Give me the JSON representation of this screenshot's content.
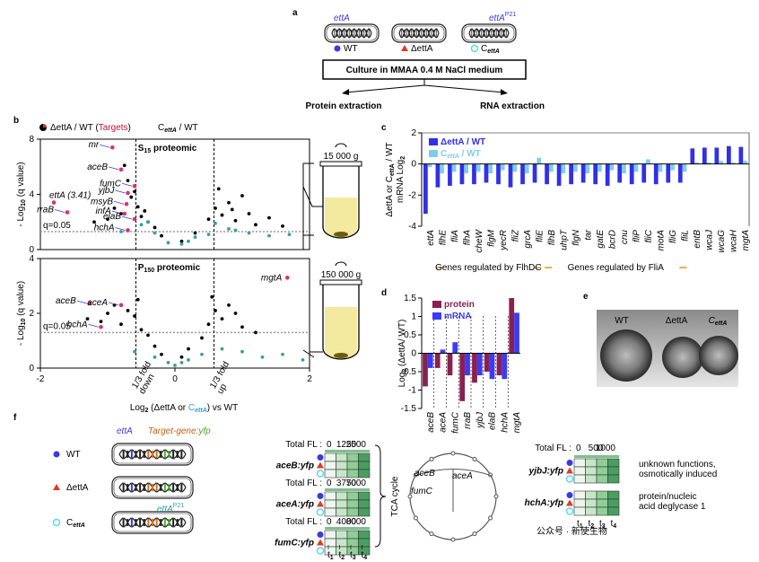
{
  "panel_a": {
    "letter": "a",
    "strains": [
      {
        "gene": "ettA",
        "legend": "WT"
      },
      {
        "legend": "ΔettA"
      },
      {
        "gene": "ettA",
        "gene_sup": "P21",
        "legend": "C",
        "legend_sub": "ettA"
      }
    ],
    "culture": "Culture in MMAA 0.4 M NaCl medium",
    "outputs": [
      "Protein extraction",
      "RNA extraction"
    ]
  },
  "panel_b": {
    "letter": "b",
    "legend1": [
      "ΔettA / WT (",
      "Targets",
      ")"
    ],
    "legend2": [
      "C",
      "ettA",
      " / WT"
    ],
    "tubes": [
      "15 000 g",
      "150 000 g"
    ]
  },
  "chart_data": [
    {
      "type": "scatter",
      "title": [
        "S",
        "15",
        " proteomic"
      ],
      "ylabel": [
        "- Log",
        "10",
        " (q value)"
      ],
      "xlim": [
        -2,
        2
      ],
      "ylim": [
        0,
        8
      ],
      "yticks": [
        0,
        4,
        8
      ],
      "threshold": 1.3,
      "threshold_label": "q=0.05",
      "fold_lines": [
        -0.58,
        0.58
      ],
      "series": [
        {
          "color": "#000000",
          "x": [
            -1.2,
            -0.9,
            -0.8,
            -0.7,
            -0.65,
            -0.6,
            -0.55,
            -0.5,
            -0.45,
            -0.4,
            -0.3,
            -0.2,
            0.1,
            0.3,
            0.5,
            0.6,
            0.7,
            0.8,
            0.9,
            1.0,
            1.1,
            1.2,
            1.4,
            1.6,
            -1.0,
            -0.75,
            0.65,
            0.85
          ],
          "y": [
            2.0,
            3.0,
            2.6,
            5.0,
            3.8,
            4.2,
            3.1,
            2.4,
            2.8,
            2.0,
            1.6,
            1.0,
            0.6,
            1.2,
            2.2,
            3.0,
            2.5,
            3.4,
            2.1,
            3.9,
            2.6,
            1.8,
            2.3,
            1.7,
            2.2,
            6.1,
            4.4,
            2.9
          ]
        },
        {
          "color": "#3a9e9e",
          "x": [
            -0.8,
            -0.5,
            -0.3,
            -0.1,
            0.1,
            0.3,
            0.5,
            0.8,
            1.1,
            1.4,
            1.7,
            -0.4,
            0.2,
            0.6,
            0.9
          ],
          "y": [
            1.3,
            1.8,
            1.2,
            0.5,
            0.4,
            0.9,
            1.1,
            1.5,
            1.2,
            1.0,
            1.1,
            2.0,
            0.6,
            1.9,
            1.4
          ]
        }
      ],
      "annotations": [
        {
          "text": "mr",
          "x": -0.93,
          "y": 7.4
        },
        {
          "text": "aceB",
          "x": -0.8,
          "y": 5.8
        },
        {
          "text": "fumC",
          "x": -0.6,
          "y": 4.6
        },
        {
          "text": "yjbJ",
          "x": -0.7,
          "y": 4.1
        },
        {
          "text": "msyB",
          "x": -0.72,
          "y": 3.3
        },
        {
          "text": "ettA (3.41)",
          "x": -1.8,
          "y": 3.41
        },
        {
          "text": "rraB",
          "x": -1.6,
          "y": 2.7
        },
        {
          "text": "infA",
          "x": -0.75,
          "y": 2.6
        },
        {
          "text": "elaB",
          "x": -0.6,
          "y": 2.2
        },
        {
          "text": "hchA",
          "x": -0.7,
          "y": 1.4
        }
      ]
    },
    {
      "type": "scatter",
      "title": [
        "P",
        "150",
        " proteomic"
      ],
      "ylabel": [
        "- Log",
        "10",
        " (q value)"
      ],
      "xlabel": [
        "Log",
        "2",
        " (ΔettA or ",
        "C",
        "ettA",
        ") vs WT"
      ],
      "xlim": [
        -2,
        2
      ],
      "xticks": [
        -2,
        0,
        2
      ],
      "ylim": [
        0,
        4
      ],
      "yticks": [
        0,
        2,
        4
      ],
      "threshold": 1.3,
      "threshold_label": "q=0.05",
      "fold_lines": [
        -0.58,
        0.58
      ],
      "fold_labels": [
        [
          "1/3 fold",
          "down"
        ],
        [
          "1/3 fold",
          "up"
        ]
      ],
      "series": [
        {
          "color": "#000000",
          "x": [
            -1.3,
            -1.0,
            -0.9,
            -0.8,
            -0.7,
            -0.6,
            -0.5,
            -0.4,
            -0.3,
            -0.2,
            0.1,
            0.2,
            0.4,
            0.5,
            0.6,
            0.7,
            0.8,
            1.0,
            1.2,
            -1.1,
            -0.55,
            0.55,
            0.9
          ],
          "y": [
            1.8,
            2.0,
            2.3,
            1.6,
            2.1,
            1.9,
            1.4,
            1.2,
            0.8,
            0.5,
            0.4,
            0.7,
            1.1,
            1.6,
            2.1,
            1.8,
            2.3,
            1.5,
            1.3,
            1.7,
            2.5,
            2.6,
            2.0
          ]
        },
        {
          "color": "#3a9e9e",
          "x": [
            -0.6,
            -0.3,
            -0.1,
            0.0,
            0.1,
            0.2,
            0.4,
            0.7,
            1.0,
            1.3,
            1.6,
            1.9
          ],
          "y": [
            0.6,
            0.4,
            0.2,
            0.1,
            0.2,
            0.3,
            0.5,
            0.7,
            0.6,
            0.4,
            0.5,
            0.3
          ]
        }
      ],
      "annotations": [
        {
          "text": "mgtA",
          "x": 1.67,
          "y": 3.3
        },
        {
          "text": "aceB",
          "x": -1.27,
          "y": 2.36
        },
        {
          "text": "aceA",
          "x": -0.8,
          "y": 2.3
        },
        {
          "text": "hchA",
          "x": -1.1,
          "y": 1.5
        }
      ]
    },
    {
      "type": "bar",
      "letter": "c",
      "ylabel": [
        [
          "ΔettA or C",
          "ettA",
          " / WT"
        ],
        [
          "mRNA Log",
          "2"
        ]
      ],
      "categories": [
        "ettA",
        "flhE",
        "fliA",
        "flhA",
        "cheW",
        "flgM",
        "yecR",
        "fliZ",
        "grcA",
        "fliE",
        "flhB",
        "uhpT",
        "flgN",
        "tar",
        "gatE",
        "bcrD",
        "cnu",
        "fliP",
        "fliC",
        "motA",
        "fliG",
        "fliL",
        "entB",
        "wcaJ",
        "wcaG",
        "wcaH",
        "mgtA"
      ],
      "ylim": [
        -4,
        2
      ],
      "yticks": [
        -4,
        -2,
        0,
        2
      ],
      "series": [
        {
          "name": "ΔettA / WT",
          "color": "#3030e8",
          "values": [
            -3.2,
            -1.5,
            -1.4,
            -1.3,
            -1.3,
            -1.2,
            -1.3,
            -1.5,
            -1.3,
            -1.2,
            -1.3,
            -1.4,
            -1.3,
            -1.2,
            -1.3,
            -1.4,
            -1.2,
            -1.3,
            -1.2,
            -1.3,
            -1.2,
            -1.2,
            1.0,
            1.05,
            1.05,
            1.15,
            1.1
          ]
        },
        {
          "name": [
            "C",
            "ettA",
            " / WT"
          ],
          "color": "#80ccf0",
          "values": [
            -0.2,
            -0.6,
            -0.5,
            -0.6,
            -0.5,
            -0.6,
            -0.4,
            -0.5,
            -0.6,
            0.4,
            -0.5,
            -0.6,
            -0.5,
            -0.6,
            -0.5,
            -0.4,
            -0.6,
            -0.5,
            0.3,
            -0.5,
            -0.4,
            -0.5,
            0.1,
            0.1,
            0.2,
            0.1,
            0.2
          ]
        }
      ],
      "groups": [
        {
          "text": "Genes regulated by FlhDC",
          "from": 1,
          "to": 9
        },
        {
          "text": "Genes regulated by FliA",
          "from": 10,
          "to": 21
        }
      ]
    },
    {
      "type": "bar",
      "letter": "d",
      "ylabel": [
        [
          "Log",
          "2",
          " (ΔettA/ WT)"
        ]
      ],
      "categories": [
        "aceB",
        "aceA",
        "fumC",
        "rraB",
        "yjbJ",
        "elaB",
        "hchA",
        "mgtA"
      ],
      "ylim": [
        -1.5,
        1.5
      ],
      "yticks": [
        -1.5,
        -1,
        -0.5,
        0,
        0.5,
        1,
        1.5
      ],
      "series": [
        {
          "name": "protein",
          "color": "#8b2050",
          "values": [
            -0.9,
            -0.4,
            -0.6,
            -1.3,
            -0.8,
            -0.5,
            -0.6,
            1.5
          ]
        },
        {
          "name": "mRNA",
          "color": "#3b3bf5",
          "values": [
            -0.4,
            0.1,
            0.3,
            -0.6,
            -0.6,
            -0.7,
            -0.7,
            1.1
          ]
        }
      ]
    }
  ],
  "panel_e": {
    "letter": "e",
    "labels": [
      [
        "WT"
      ],
      [
        "ΔettA"
      ],
      [
        "C",
        "ettA"
      ]
    ]
  },
  "panel_f": {
    "letter": "f",
    "gene": "ettA",
    "target": [
      "Target-gene:",
      "yfp"
    ],
    "strains": [
      [
        "WT"
      ],
      [
        "ΔettA"
      ],
      [
        "C",
        "ettA"
      ]
    ],
    "plasmid_gene": [
      "ettA",
      "P21"
    ],
    "scale_title": "Total FL :",
    "heatmaps": [
      {
        "label": "aceB:yfp",
        "scale": [
          0,
          1250,
          2500
        ]
      },
      {
        "label": "aceA:yfp",
        "scale": [
          0,
          3750,
          7000
        ]
      },
      {
        "label": "fumC:yfp",
        "scale": [
          0,
          4000,
          8000
        ]
      }
    ],
    "times": [
      [
        "t",
        "1"
      ],
      [
        "t",
        "2"
      ],
      [
        "t",
        "3"
      ],
      [
        "t",
        "4"
      ]
    ],
    "tca": {
      "title": "TCA cycle",
      "genes": [
        "aceB",
        "aceA",
        "fumC"
      ]
    },
    "right_scale": [
      0,
      500,
      1000
    ],
    "right_heatmaps": [
      {
        "label": "yjbJ:yfp",
        "desc": [
          "unknown functions,",
          "osmotically induced"
        ]
      },
      {
        "label": "hchA:yfp",
        "desc": [
          "protein/nucleic",
          "acid deglycase 1"
        ]
      }
    ]
  },
  "watermark": "公众号 · 新使生物"
}
